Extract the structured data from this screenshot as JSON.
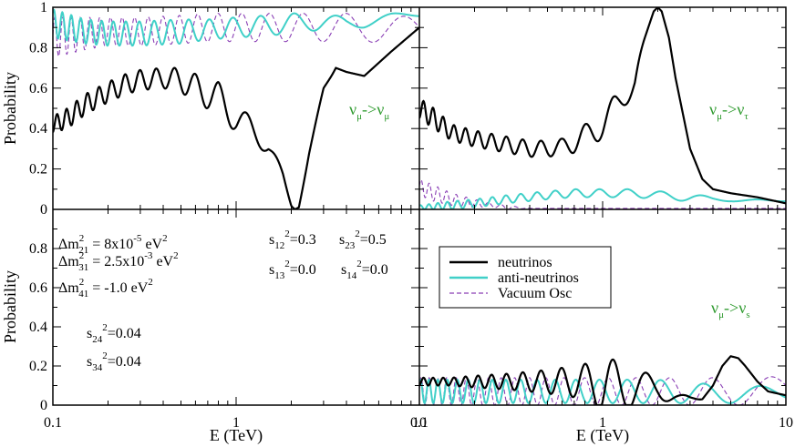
{
  "chart_data": [
    {
      "panel": "top-left",
      "type": "line",
      "annotation": {
        "base": "ν",
        "sub1": "μ",
        "arrow": "->",
        "base2": "ν",
        "sub2": "μ"
      },
      "ylabel": "Probability",
      "xscale": "log",
      "xlim": [
        0.1,
        10
      ],
      "ylim": [
        0,
        1
      ],
      "yticks": [
        "0",
        "0.2",
        "0.4",
        "0.6",
        "0.8",
        "1"
      ],
      "series": [
        {
          "name": "neutrinos",
          "color": "#000000",
          "style": "solid",
          "x": [
            0.1,
            0.12,
            0.15,
            0.2,
            0.25,
            0.3,
            0.4,
            0.5,
            0.6,
            0.8,
            1.0,
            1.2,
            1.5,
            1.8,
            2.0,
            2.1,
            2.2,
            2.5,
            3.0,
            3.5,
            4.0,
            5.0,
            7.0,
            10.0
          ],
          "y": [
            0.42,
            0.45,
            0.52,
            0.58,
            0.62,
            0.64,
            0.65,
            0.64,
            0.6,
            0.55,
            0.45,
            0.4,
            0.32,
            0.15,
            0.02,
            0.0,
            0.02,
            0.28,
            0.58,
            0.7,
            0.68,
            0.66,
            0.78,
            0.9
          ],
          "oscillation_amplitude": [
            0.04,
            0.05,
            0.05,
            0.05,
            0.05,
            0.05,
            0.05,
            0.06,
            0.07,
            0.08,
            0.07,
            0.06,
            0.05,
            0.03,
            0.01,
            0,
            0.01,
            0.02,
            0.02,
            0.0,
            0.0,
            0,
            0,
            0
          ]
        },
        {
          "name": "anti-neutrinos",
          "color": "#40d0c8",
          "style": "solid",
          "x": [
            0.1,
            0.15,
            0.2,
            0.3,
            0.5,
            0.7,
            1.0,
            1.5,
            2.0,
            3.0,
            4.0,
            5.0,
            7.0,
            10.0
          ],
          "y": [
            0.92,
            0.88,
            0.87,
            0.87,
            0.88,
            0.89,
            0.9,
            0.91,
            0.92,
            0.93,
            0.92,
            0.93,
            0.95,
            0.96
          ],
          "oscillation_amplitude": [
            0.07,
            0.06,
            0.06,
            0.06,
            0.06,
            0.05,
            0.05,
            0.05,
            0.05,
            0.04,
            0.03,
            0.03,
            0.02,
            0.01
          ]
        },
        {
          "name": "Vacuum Osc",
          "color": "#8a3fb5",
          "style": "dashed",
          "x": [
            0.1,
            0.15,
            0.2,
            0.3,
            0.5,
            0.7,
            1.0,
            1.5,
            2.0,
            3.0,
            4.0,
            5.0,
            7.0,
            10.0
          ],
          "y": [
            0.85,
            0.87,
            0.88,
            0.88,
            0.89,
            0.9,
            0.9,
            0.9,
            0.9,
            0.9,
            0.9,
            0.9,
            0.89,
            0.88
          ],
          "oscillation_amplitude": [
            0.1,
            0.08,
            0.07,
            0.07,
            0.07,
            0.07,
            0.07,
            0.07,
            0.07,
            0.07,
            0.07,
            0.07,
            0.07,
            0.07
          ]
        }
      ]
    },
    {
      "panel": "top-right",
      "type": "line",
      "annotation": {
        "base": "ν",
        "sub1": "μ",
        "arrow": "->",
        "base2": "ν",
        "sub2": "τ"
      },
      "xscale": "log",
      "xlim": [
        0.1,
        10
      ],
      "ylim": [
        0,
        1
      ],
      "series": [
        {
          "name": "neutrinos",
          "color": "#000000",
          "style": "solid",
          "x": [
            0.1,
            0.12,
            0.15,
            0.2,
            0.3,
            0.4,
            0.5,
            0.6,
            0.7,
            0.8,
            1.0,
            1.2,
            1.5,
            1.7,
            1.9,
            2.0,
            2.1,
            2.3,
            2.5,
            3.0,
            3.5,
            4.0,
            5.0,
            7.0,
            10.0
          ],
          "y": [
            0.5,
            0.45,
            0.38,
            0.35,
            0.32,
            0.3,
            0.3,
            0.31,
            0.33,
            0.36,
            0.42,
            0.5,
            0.65,
            0.85,
            0.98,
            1.0,
            0.98,
            0.85,
            0.65,
            0.3,
            0.15,
            0.1,
            0.08,
            0.06,
            0.03
          ],
          "oscillation_amplitude": [
            0.05,
            0.05,
            0.04,
            0.04,
            0.04,
            0.04,
            0.04,
            0.04,
            0.05,
            0.06,
            0.07,
            0.08,
            0.05,
            0.0,
            0,
            0,
            0,
            0,
            0,
            0,
            0,
            0,
            0,
            0,
            0
          ]
        },
        {
          "name": "anti-neutrinos",
          "color": "#40d0c8",
          "style": "solid",
          "x": [
            0.1,
            0.15,
            0.2,
            0.3,
            0.5,
            0.7,
            1.0,
            1.5,
            2.0,
            3.0,
            4.0,
            5.0,
            7.0,
            10.0
          ],
          "y": [
            0.01,
            0.02,
            0.03,
            0.05,
            0.07,
            0.08,
            0.08,
            0.08,
            0.07,
            0.06,
            0.05,
            0.05,
            0.04,
            0.04
          ],
          "oscillation_amplitude": [
            0.01,
            0.02,
            0.02,
            0.02,
            0.02,
            0.02,
            0.02,
            0.02,
            0.02,
            0.02,
            0.01,
            0.01,
            0.01,
            0.0
          ]
        },
        {
          "name": "Vacuum Osc",
          "color": "#8a3fb5",
          "style": "dashed",
          "x": [
            0.1,
            0.12,
            0.15,
            0.2,
            0.25,
            0.3,
            0.4,
            0.5,
            1.0,
            10.0
          ],
          "y": [
            0.11,
            0.08,
            0.05,
            0.03,
            0.02,
            0.01,
            0.005,
            0.005,
            0.005,
            0.005
          ],
          "oscillation_amplitude": [
            0.04,
            0.04,
            0.03,
            0.02,
            0.01,
            0.01,
            0.0,
            0.0,
            0.0,
            0.0
          ]
        }
      ]
    },
    {
      "panel": "bottom-left",
      "type": "line",
      "ylabel": "Probability",
      "xlabel": "E (TeV)",
      "xscale": "log",
      "xlim": [
        0.1,
        10
      ],
      "ylim": [
        0,
        1
      ],
      "xticks": [
        "0.1",
        "1",
        "10"
      ],
      "yticks": [
        "0",
        "0.2",
        "0.4",
        "0.6",
        "0.8"
      ],
      "series": []
    },
    {
      "panel": "bottom-right",
      "type": "line",
      "annotation": {
        "base": "ν",
        "sub1": "μ",
        "arrow": "->",
        "base2": "ν",
        "sub2": "s"
      },
      "xlabel": "E (TeV)",
      "xscale": "log",
      "xlim": [
        0.1,
        10
      ],
      "ylim": [
        0,
        1
      ],
      "xticks": [
        "0.1",
        "1",
        "10"
      ],
      "series": [
        {
          "name": "neutrinos",
          "color": "#000000",
          "style": "solid",
          "x": [
            0.1,
            0.15,
            0.2,
            0.3,
            0.5,
            0.7,
            0.9,
            1.0,
            1.2,
            1.5,
            2.0,
            2.5,
            3.0,
            3.5,
            4.0,
            4.5,
            5.0,
            5.5,
            6.0,
            7.0,
            8.0,
            10.0
          ],
          "y": [
            0.12,
            0.12,
            0.12,
            0.12,
            0.12,
            0.12,
            0.11,
            0.1,
            0.1,
            0.09,
            0.08,
            0.05,
            0.02,
            0.03,
            0.1,
            0.2,
            0.25,
            0.24,
            0.2,
            0.12,
            0.07,
            0.05
          ],
          "oscillation_amplitude": [
            0.02,
            0.02,
            0.03,
            0.04,
            0.06,
            0.08,
            0.11,
            0.14,
            0.13,
            0.1,
            0.06,
            0.03,
            0.02,
            0.0,
            0,
            0,
            0,
            0,
            0,
            0,
            0,
            0
          ]
        },
        {
          "name": "anti-neutrinos",
          "color": "#40d0c8",
          "style": "solid",
          "x": [
            0.1,
            0.15,
            0.2,
            0.3,
            0.5,
            0.7,
            1.0,
            1.5,
            2.0,
            3.0,
            4.0,
            5.0,
            7.0,
            10.0
          ],
          "y": [
            0.07,
            0.07,
            0.07,
            0.07,
            0.07,
            0.07,
            0.07,
            0.07,
            0.07,
            0.06,
            0.06,
            0.06,
            0.06,
            0.05
          ],
          "oscillation_amplitude": [
            0.06,
            0.06,
            0.06,
            0.06,
            0.06,
            0.06,
            0.06,
            0.06,
            0.06,
            0.05,
            0.05,
            0.05,
            0.04,
            0.03
          ]
        },
        {
          "name": "Vacuum Osc",
          "color": "#8a3fb5",
          "style": "dashed",
          "x": [
            0.1,
            0.15,
            0.2,
            0.3,
            0.5,
            0.7,
            1.0,
            1.5,
            2.0,
            3.0,
            4.0,
            5.0,
            7.0,
            10.0
          ],
          "y": [
            0.07,
            0.07,
            0.07,
            0.07,
            0.07,
            0.07,
            0.07,
            0.07,
            0.07,
            0.07,
            0.07,
            0.07,
            0.07,
            0.08
          ],
          "oscillation_amplitude": [
            0.07,
            0.07,
            0.07,
            0.07,
            0.07,
            0.07,
            0.07,
            0.07,
            0.07,
            0.07,
            0.07,
            0.07,
            0.07,
            0.07
          ]
        }
      ]
    }
  ],
  "legend": {
    "placement": "bottom-right panel, top-left",
    "entries": [
      {
        "label": "neutrinos",
        "color": "#000000",
        "style": "solid"
      },
      {
        "label": "anti-neutrinos",
        "color": "#40d0c8",
        "style": "solid"
      },
      {
        "label": "Vacuum Osc",
        "color": "#8a3fb5",
        "style": "dashed"
      }
    ]
  },
  "parameters": {
    "dm21": {
      "pre": "Δm",
      "sup": "2",
      "sub": "21",
      "mid": " = 8x10",
      "exp": "-5",
      "unit": " eV",
      "unit_sup": "2"
    },
    "dm31": {
      "pre": "Δm",
      "sup": "2",
      "sub": "31",
      "mid": " = 2.5x10",
      "exp": "-3",
      "unit": " eV",
      "unit_sup": "2"
    },
    "dm41": {
      "pre": "Δm",
      "sup": "2",
      "sub": "41",
      "mid": " = -1.0 eV",
      "unit_sup": "2"
    },
    "s12": {
      "pre": "s",
      "sub": "12",
      "sup": "2",
      "val": "=0.3"
    },
    "s23": {
      "pre": "s",
      "sub": "23",
      "sup": "2",
      "val": "=0.5"
    },
    "s13": {
      "pre": "s",
      "sub": "13",
      "sup": "2",
      "val": "=0.0"
    },
    "s14": {
      "pre": "s",
      "sub": "14",
      "sup": "2",
      "val": "=0.0"
    },
    "s24": {
      "pre": "s",
      "sub": "24",
      "sup": "2",
      "val": "=0.04"
    },
    "s34": {
      "pre": "s",
      "sub": "34",
      "sup": "2",
      "val": "=0.04"
    }
  }
}
